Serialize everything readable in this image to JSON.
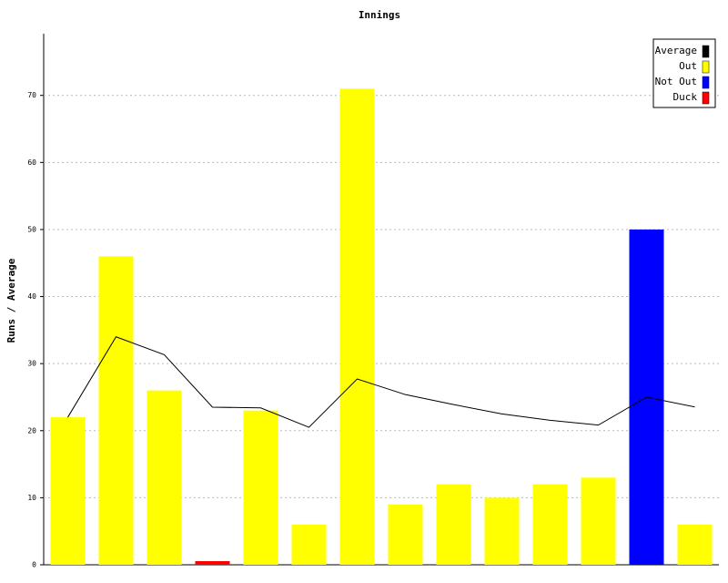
{
  "chart_data": {
    "type": "bar",
    "title": "Innings",
    "y_label": "Runs / Average",
    "categories": [
      null,
      null,
      null,
      null,
      null,
      null,
      null,
      null,
      null,
      null,
      null,
      null,
      null,
      null
    ],
    "series": [
      {
        "name": "Average",
        "color": "#000000",
        "type": "line",
        "values": [
          22,
          34,
          31.33,
          23.5,
          23.4,
          20.5,
          27.71,
          25.38,
          23.89,
          22.5,
          21.55,
          20.83,
          25,
          23.54
        ]
      },
      {
        "name": "Out",
        "color": "#ffff00",
        "values": [
          22,
          46,
          26,
          null,
          23,
          6,
          71,
          9,
          12,
          10,
          12,
          13,
          null,
          6
        ]
      },
      {
        "name": "Not Out",
        "color": "#0000ff",
        "values": [
          null,
          null,
          null,
          null,
          null,
          null,
          null,
          null,
          null,
          null,
          null,
          null,
          50,
          null
        ]
      },
      {
        "name": "Duck",
        "color": "#ff0000",
        "values": [
          null,
          null,
          null,
          0,
          null,
          null,
          null,
          null,
          null,
          null,
          null,
          null,
          null,
          null
        ]
      }
    ],
    "ylim": [
      0,
      79.2
    ],
    "yticks": [
      0,
      10,
      20,
      30,
      40,
      50,
      60,
      70
    ],
    "grid": true,
    "legend": "top-right"
  }
}
